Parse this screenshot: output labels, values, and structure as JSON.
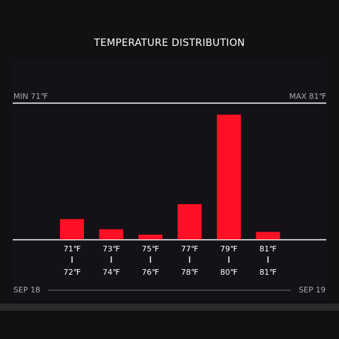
{
  "title": "TEMPERATURE DISTRIBUTION",
  "min_label": "MIN 71℉",
  "max_label": "MAX 81℉",
  "date_start": "SEP 18",
  "date_end": "SEP 19",
  "colors": {
    "bar": "#ff1024",
    "axis": "#ffffff",
    "text": "#ffffff",
    "muted": "#a9a9ad"
  },
  "chart_data": {
    "type": "bar",
    "categories": [
      "71℉–72℉",
      "73℉–74℉",
      "75℉–76℉",
      "77℉–78℉",
      "79℉–80℉",
      "81℉–81℉"
    ],
    "range_start_labels": [
      "71℉",
      "73℉",
      "75℉",
      "77℉",
      "79℉",
      "81℉"
    ],
    "range_end_labels": [
      "72℉",
      "74℉",
      "76℉",
      "78℉",
      "80℉",
      "81℉"
    ],
    "values": [
      15,
      7.5,
      3.5,
      26,
      92,
      5.5
    ],
    "ylim": [
      0,
      100
    ],
    "grid": false,
    "legend": "none"
  }
}
